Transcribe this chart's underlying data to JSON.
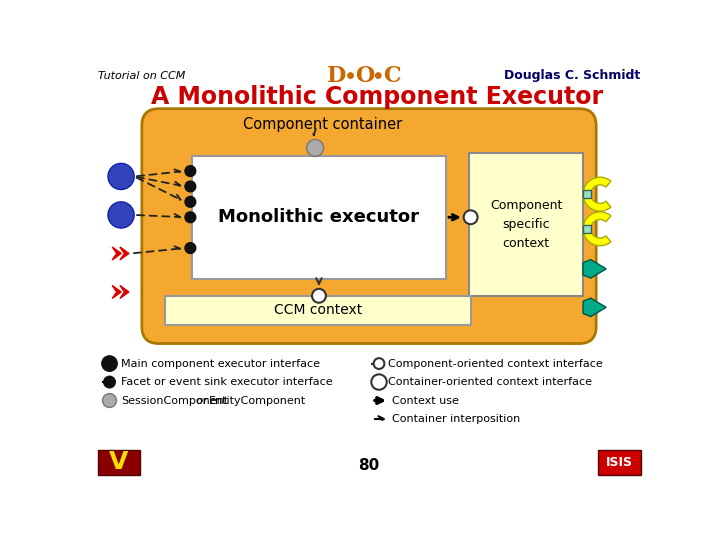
{
  "title": "A Monolithic Component Executor",
  "header_left": "Tutorial on CCM",
  "header_right": "Douglas C. Schmidt",
  "bg_color": "#ffffff",
  "outer_box_color": "#f5a830",
  "outer_box_edge": "#c8860a",
  "inner_box_color": "#ffffff",
  "inner_box_edge": "#999999",
  "context_box_color": "#ffffcc",
  "ccm_box_color": "#ffffcc",
  "title_color": "#cc0000",
  "blue_circle_color": "#3344bb",
  "red_chevron_color": "#dd0000",
  "black_dot_color": "#111111",
  "gray_circle_color": "#aaaaaa",
  "yellow_crescent_color": "#ffff00",
  "teal_pentagon_color": "#00aa88",
  "page_number": "80",
  "monolithic_executor_text": "Monolithic executor",
  "component_container_text": "Component container",
  "component_specific_context_text": "Component\nspecific\ncontext",
  "ccm_context_text": "CCM context"
}
